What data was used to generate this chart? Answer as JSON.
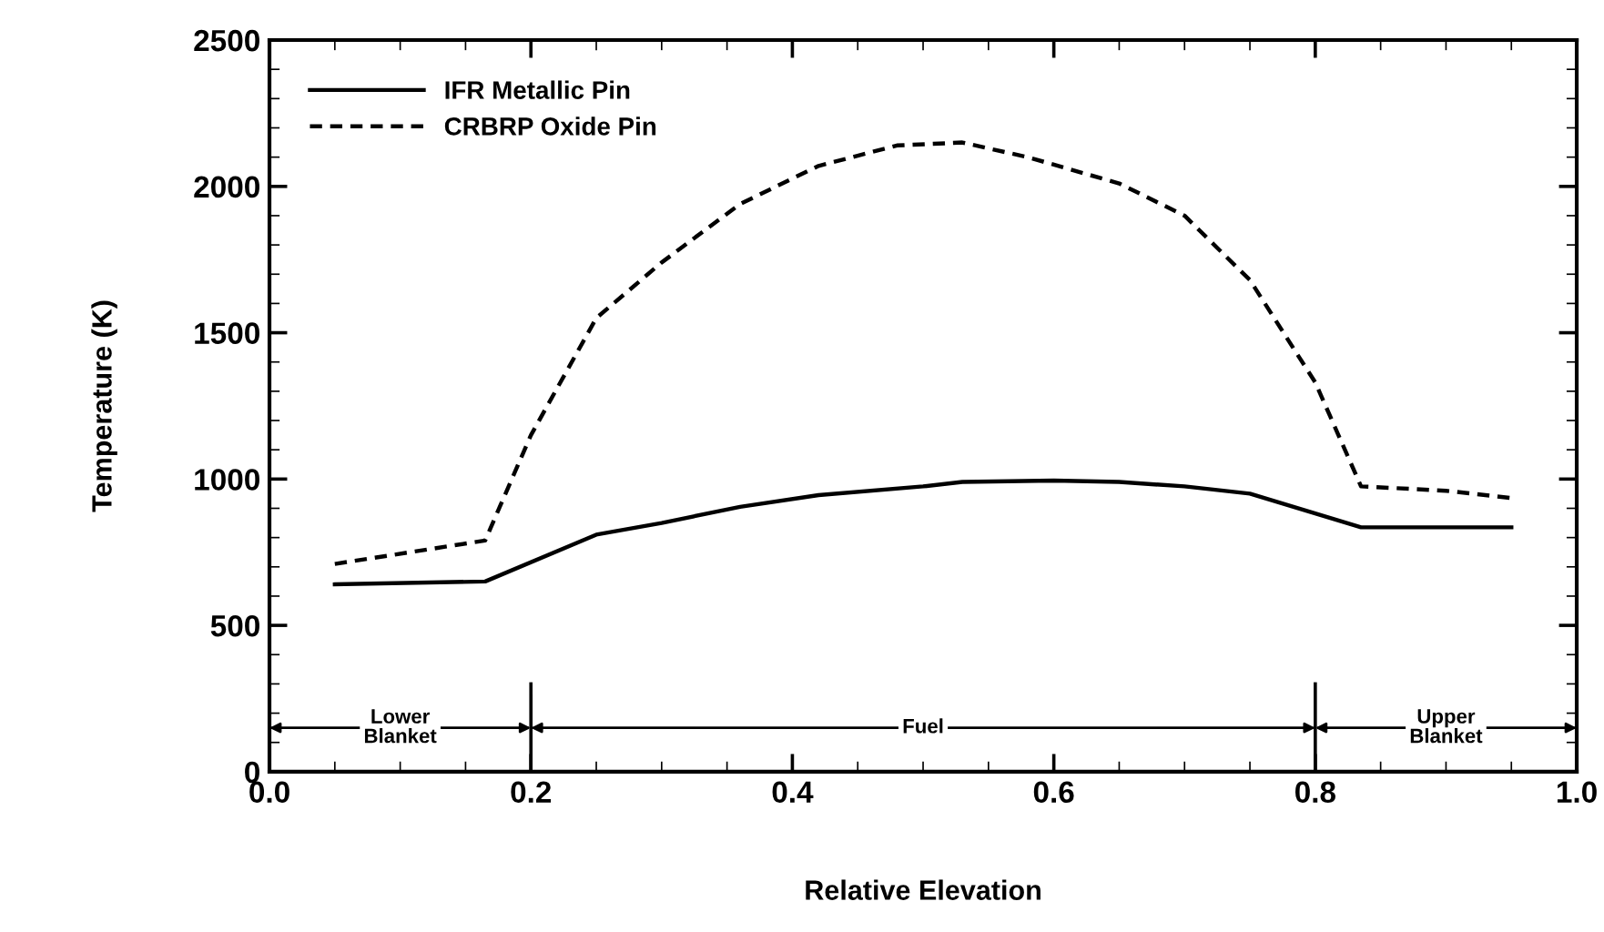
{
  "chart_data": {
    "type": "line",
    "xlabel": "Relative Elevation",
    "ylabel": "Temperature (K)",
    "xlim": [
      0.0,
      1.0
    ],
    "ylim": [
      0,
      2500
    ],
    "xticks": [
      {
        "value": 0.0,
        "label": "0.0"
      },
      {
        "value": 0.2,
        "label": "0.2"
      },
      {
        "value": 0.4,
        "label": "0.4"
      },
      {
        "value": 0.6,
        "label": "0.6"
      },
      {
        "value": 0.8,
        "label": "0.8"
      },
      {
        "value": 1.0,
        "label": "1.0"
      }
    ],
    "yticks": [
      0,
      500,
      1000,
      1500,
      2000,
      2500
    ],
    "grid": false,
    "legend": "top left",
    "series": [
      {
        "name": "IFR Metallic Pin",
        "color": "#000000",
        "line_style": "solid",
        "x": [
          0.05,
          0.165,
          0.25,
          0.3,
          0.36,
          0.42,
          0.5,
          0.53,
          0.6,
          0.65,
          0.7,
          0.75,
          0.835,
          0.95
        ],
        "values": [
          640,
          650,
          810,
          850,
          905,
          945,
          975,
          990,
          995,
          990,
          975,
          950,
          835,
          835
        ]
      },
      {
        "name": "CRBRP Oxide Pin",
        "color": "#000000",
        "line_style": "dashed",
        "x": [
          0.05,
          0.165,
          0.2,
          0.25,
          0.3,
          0.36,
          0.42,
          0.48,
          0.53,
          0.58,
          0.65,
          0.7,
          0.75,
          0.8,
          0.835,
          0.9,
          0.95
        ],
        "values": [
          710,
          790,
          1150,
          1550,
          1740,
          1940,
          2070,
          2140,
          2150,
          2100,
          2010,
          1900,
          1680,
          1330,
          975,
          960,
          935
        ]
      }
    ],
    "ref_lines": [
      {
        "axis": "x",
        "value": 0.2
      },
      {
        "axis": "x",
        "value": 0.8
      }
    ],
    "annotations": [
      "Lower\nBlanket",
      "Fuel",
      "Upper\nBlanket"
    ]
  }
}
